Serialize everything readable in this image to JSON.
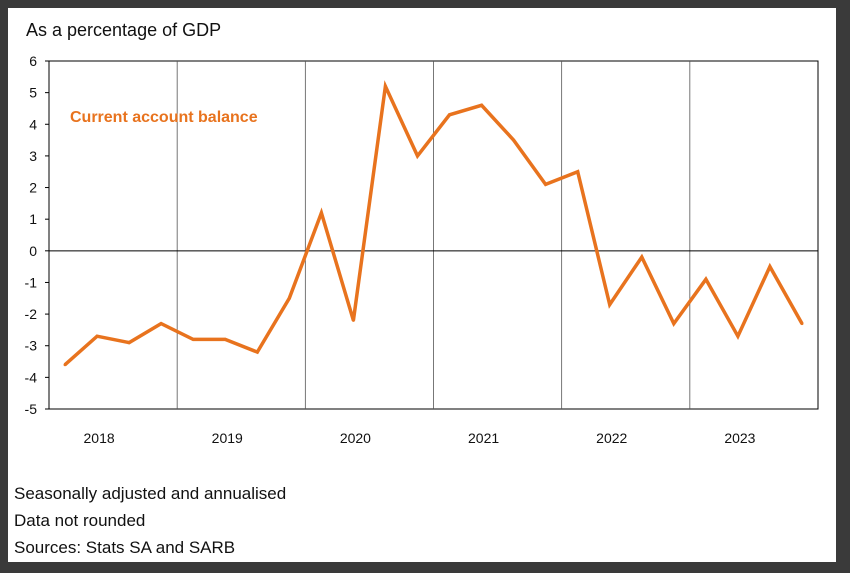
{
  "colors": {
    "line": "#E8731E",
    "axis": "#000000",
    "grid": "#000000",
    "background": "#ffffff"
  },
  "chart_data": {
    "type": "line",
    "y_unit_label": "As a percentage of GDP",
    "ylim": [
      -5,
      6
    ],
    "yticks": [
      6,
      5,
      4,
      3,
      2,
      1,
      0,
      -1,
      -2,
      -3,
      -4,
      -5
    ],
    "year_labels": [
      "2018",
      "2019",
      "2020",
      "2021",
      "2022",
      "2023"
    ],
    "vertical_gridlines": "year boundaries",
    "series": [
      {
        "name": "Current account balance",
        "color": "#E8731E",
        "x": [
          "2018Q1",
          "2018Q2",
          "2018Q3",
          "2018Q4",
          "2019Q1",
          "2019Q2",
          "2019Q3",
          "2019Q4",
          "2020Q1",
          "2020Q2",
          "2020Q3",
          "2020Q4",
          "2021Q1",
          "2021Q2",
          "2021Q3",
          "2021Q4",
          "2022Q1",
          "2022Q2",
          "2022Q3",
          "2022Q4",
          "2023Q1",
          "2023Q2",
          "2023Q3",
          "2023Q4"
        ],
        "values": [
          -3.6,
          -2.7,
          -2.9,
          -2.3,
          -2.8,
          -2.8,
          -3.2,
          -1.5,
          1.2,
          -2.2,
          5.2,
          3.0,
          4.3,
          4.6,
          3.5,
          2.1,
          2.5,
          -1.7,
          -0.2,
          -2.3,
          -0.9,
          -2.7,
          -0.5,
          -2.3
        ]
      }
    ]
  },
  "notes": {
    "line1": "Seasonally adjusted and annualised",
    "line2": "Data not rounded",
    "line3": "Sources: Stats SA and SARB"
  }
}
